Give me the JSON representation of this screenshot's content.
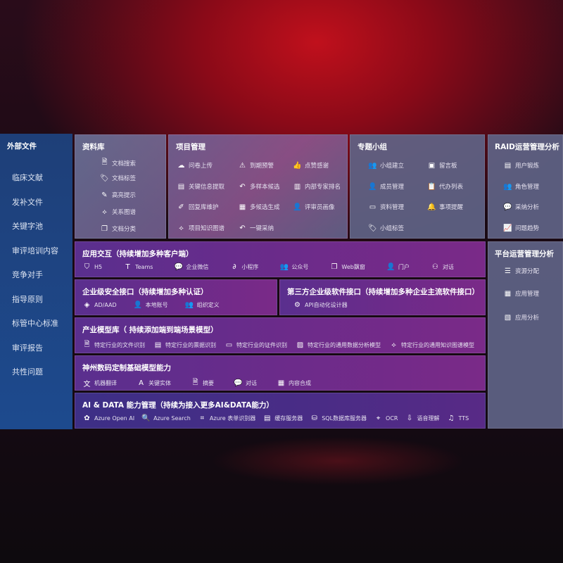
{
  "sidebar": {
    "title": "外部文件",
    "items": [
      "临床文献",
      "发补文件",
      "关键字池",
      "审评培训内容",
      "竞争对手",
      "指导原则",
      "标管中心标准",
      "审评报告",
      "共性问题"
    ]
  },
  "library": {
    "title": "资料库",
    "items": [
      {
        "icon": "doc-search-icon",
        "glyph": "🗎",
        "label": "文档搜索"
      },
      {
        "icon": "tag-icon",
        "glyph": "🏷",
        "label": "文档标签"
      },
      {
        "icon": "pen-icon",
        "glyph": "✎",
        "label": "高亮提示"
      },
      {
        "icon": "graph-icon",
        "glyph": "⟡",
        "label": "关系图谱"
      },
      {
        "icon": "doc-class-icon",
        "glyph": "❐",
        "label": "文档分类"
      }
    ]
  },
  "project": {
    "title": "项目管理",
    "items": [
      {
        "icon": "cloud-upload-icon",
        "glyph": "☁",
        "label": "问卷上传"
      },
      {
        "icon": "alarm-icon",
        "glyph": "⚠",
        "label": "到期预警"
      },
      {
        "icon": "thumb-up-icon",
        "glyph": "👍",
        "label": "点赞感谢"
      },
      {
        "icon": "extract-icon",
        "glyph": "▤",
        "label": "关键信息提取"
      },
      {
        "icon": "reply-icon",
        "glyph": "↶",
        "label": "多样本候选"
      },
      {
        "icon": "rank-icon",
        "glyph": "▥",
        "label": "内部专家排名"
      },
      {
        "icon": "edit-icon",
        "glyph": "✐",
        "label": "回复库维护"
      },
      {
        "icon": "puzzle-icon",
        "glyph": "▦",
        "label": "多候选生成"
      },
      {
        "icon": "person-icon",
        "glyph": "👤",
        "label": "评审员画像"
      },
      {
        "icon": "graph-icon",
        "glyph": "⟡",
        "label": "项目知识图谱"
      },
      {
        "icon": "reply-icon",
        "glyph": "↶",
        "label": "一键采纳"
      }
    ]
  },
  "group": {
    "title": "专题小组",
    "items": [
      {
        "icon": "group-icon",
        "glyph": "👥",
        "label": "小组建立"
      },
      {
        "icon": "bbs-icon",
        "glyph": "▣",
        "label": "留言板"
      },
      {
        "icon": "member-icon",
        "glyph": "👤",
        "label": "成员管理"
      },
      {
        "icon": "clipboard-icon",
        "glyph": "📋",
        "label": "代办列表"
      },
      {
        "icon": "folder-icon",
        "glyph": "▭",
        "label": "资料管理"
      },
      {
        "icon": "bell-icon",
        "glyph": "🔔",
        "label": "事项提醒"
      },
      {
        "icon": "tag-icon",
        "glyph": "🏷",
        "label": "小组标签"
      }
    ]
  },
  "raid": {
    "title": "RAID运营管理分析",
    "items": [
      {
        "icon": "id-card-icon",
        "glyph": "▤",
        "label": "用户锻炼"
      },
      {
        "icon": "users-icon",
        "glyph": "👥",
        "label": "角色管理"
      },
      {
        "icon": "qa-icon",
        "glyph": "💬",
        "label": "采纳分析"
      },
      {
        "icon": "trend-icon",
        "glyph": "📈",
        "label": "问题趋势"
      }
    ]
  },
  "platform": {
    "title": "平台运营管理分析",
    "items": [
      {
        "icon": "checklist-icon",
        "glyph": "☰",
        "label": "资源分配"
      },
      {
        "icon": "apps-icon",
        "glyph": "▦",
        "label": "应用管理"
      },
      {
        "icon": "analysis-icon",
        "glyph": "▧",
        "label": "应用分析"
      }
    ]
  },
  "app": {
    "title": "应用交互（持续增加多种客户端）",
    "items": [
      {
        "icon": "html5-icon",
        "glyph": "⛉",
        "label": "H5"
      },
      {
        "icon": "teams-icon",
        "glyph": "T",
        "label": "Teams"
      },
      {
        "icon": "wechat-icon",
        "glyph": "💬",
        "label": "企业微信"
      },
      {
        "icon": "miniprogram-icon",
        "glyph": "∂",
        "label": "小程序"
      },
      {
        "icon": "public-account-icon",
        "glyph": "👥",
        "label": "公众号"
      },
      {
        "icon": "window-icon",
        "glyph": "❐",
        "label": "Web飘窗"
      },
      {
        "icon": "portal-icon",
        "glyph": "👤",
        "label": "门户"
      },
      {
        "icon": "chat-icon",
        "glyph": "⚇",
        "label": "对话"
      }
    ]
  },
  "security": {
    "title": "企业级安全接口（持续增加多种认证）",
    "items": [
      {
        "icon": "aad-icon",
        "glyph": "◈",
        "label": "AD/AAD"
      },
      {
        "icon": "local-account-icon",
        "glyph": "👤",
        "label": "本地账号"
      },
      {
        "icon": "org-icon",
        "glyph": "👥",
        "label": "组织定义"
      }
    ]
  },
  "thirdparty": {
    "title": "第三方企业级软件接口（持续增加多种企业主流软件接口）",
    "items": [
      {
        "icon": "gear-icon",
        "glyph": "⚙",
        "label": "API自动化设计器"
      }
    ]
  },
  "industry": {
    "title": "产业模型库（ 持续添加端到端场景模型）",
    "items": [
      {
        "icon": "file-icon",
        "glyph": "🗎",
        "label": "特定行业的文件识别"
      },
      {
        "icon": "receipt-icon",
        "glyph": "▤",
        "label": "特定行业的票据识别"
      },
      {
        "icon": "id-card-icon",
        "glyph": "▭",
        "label": "特定行业的证件识别"
      },
      {
        "icon": "image-icon",
        "glyph": "▨",
        "label": "特定行业的通用数据分析模型"
      },
      {
        "icon": "graph-icon",
        "glyph": "⟡",
        "label": "特定行业的通用知识图谱模型"
      }
    ]
  },
  "base": {
    "title": "神州数码定制基础模型能力",
    "items": [
      {
        "icon": "translate-icon",
        "glyph": "文",
        "label": "机器翻译"
      },
      {
        "icon": "entity-icon",
        "glyph": "A",
        "label": "关键实体"
      },
      {
        "icon": "summary-icon",
        "glyph": "🗎",
        "label": "摘要"
      },
      {
        "icon": "chat-icon",
        "glyph": "💬",
        "label": "对话"
      },
      {
        "icon": "compose-icon",
        "glyph": "▦",
        "label": "内容合成"
      }
    ]
  },
  "ai": {
    "title": "AI & DATA 能力管理（持续为接入更多AI&DATA能力）",
    "items": [
      {
        "icon": "openai-icon",
        "glyph": "✿",
        "label": "Azure Open AI"
      },
      {
        "icon": "search-icon",
        "glyph": "🔍",
        "label": "Azure Search"
      },
      {
        "icon": "form-icon",
        "glyph": "⌗",
        "label": "Azure 表单识别器"
      },
      {
        "icon": "cache-icon",
        "glyph": "▤",
        "label": "缓存服务器"
      },
      {
        "icon": "database-icon",
        "glyph": "⛁",
        "label": "SQL数据库服务器"
      },
      {
        "icon": "ocr-icon",
        "glyph": "⌖",
        "label": "OCR"
      },
      {
        "icon": "speech-icon",
        "glyph": "⇩",
        "label": "语音理解"
      },
      {
        "icon": "tts-icon",
        "glyph": "♫",
        "label": "TTS"
      }
    ]
  }
}
